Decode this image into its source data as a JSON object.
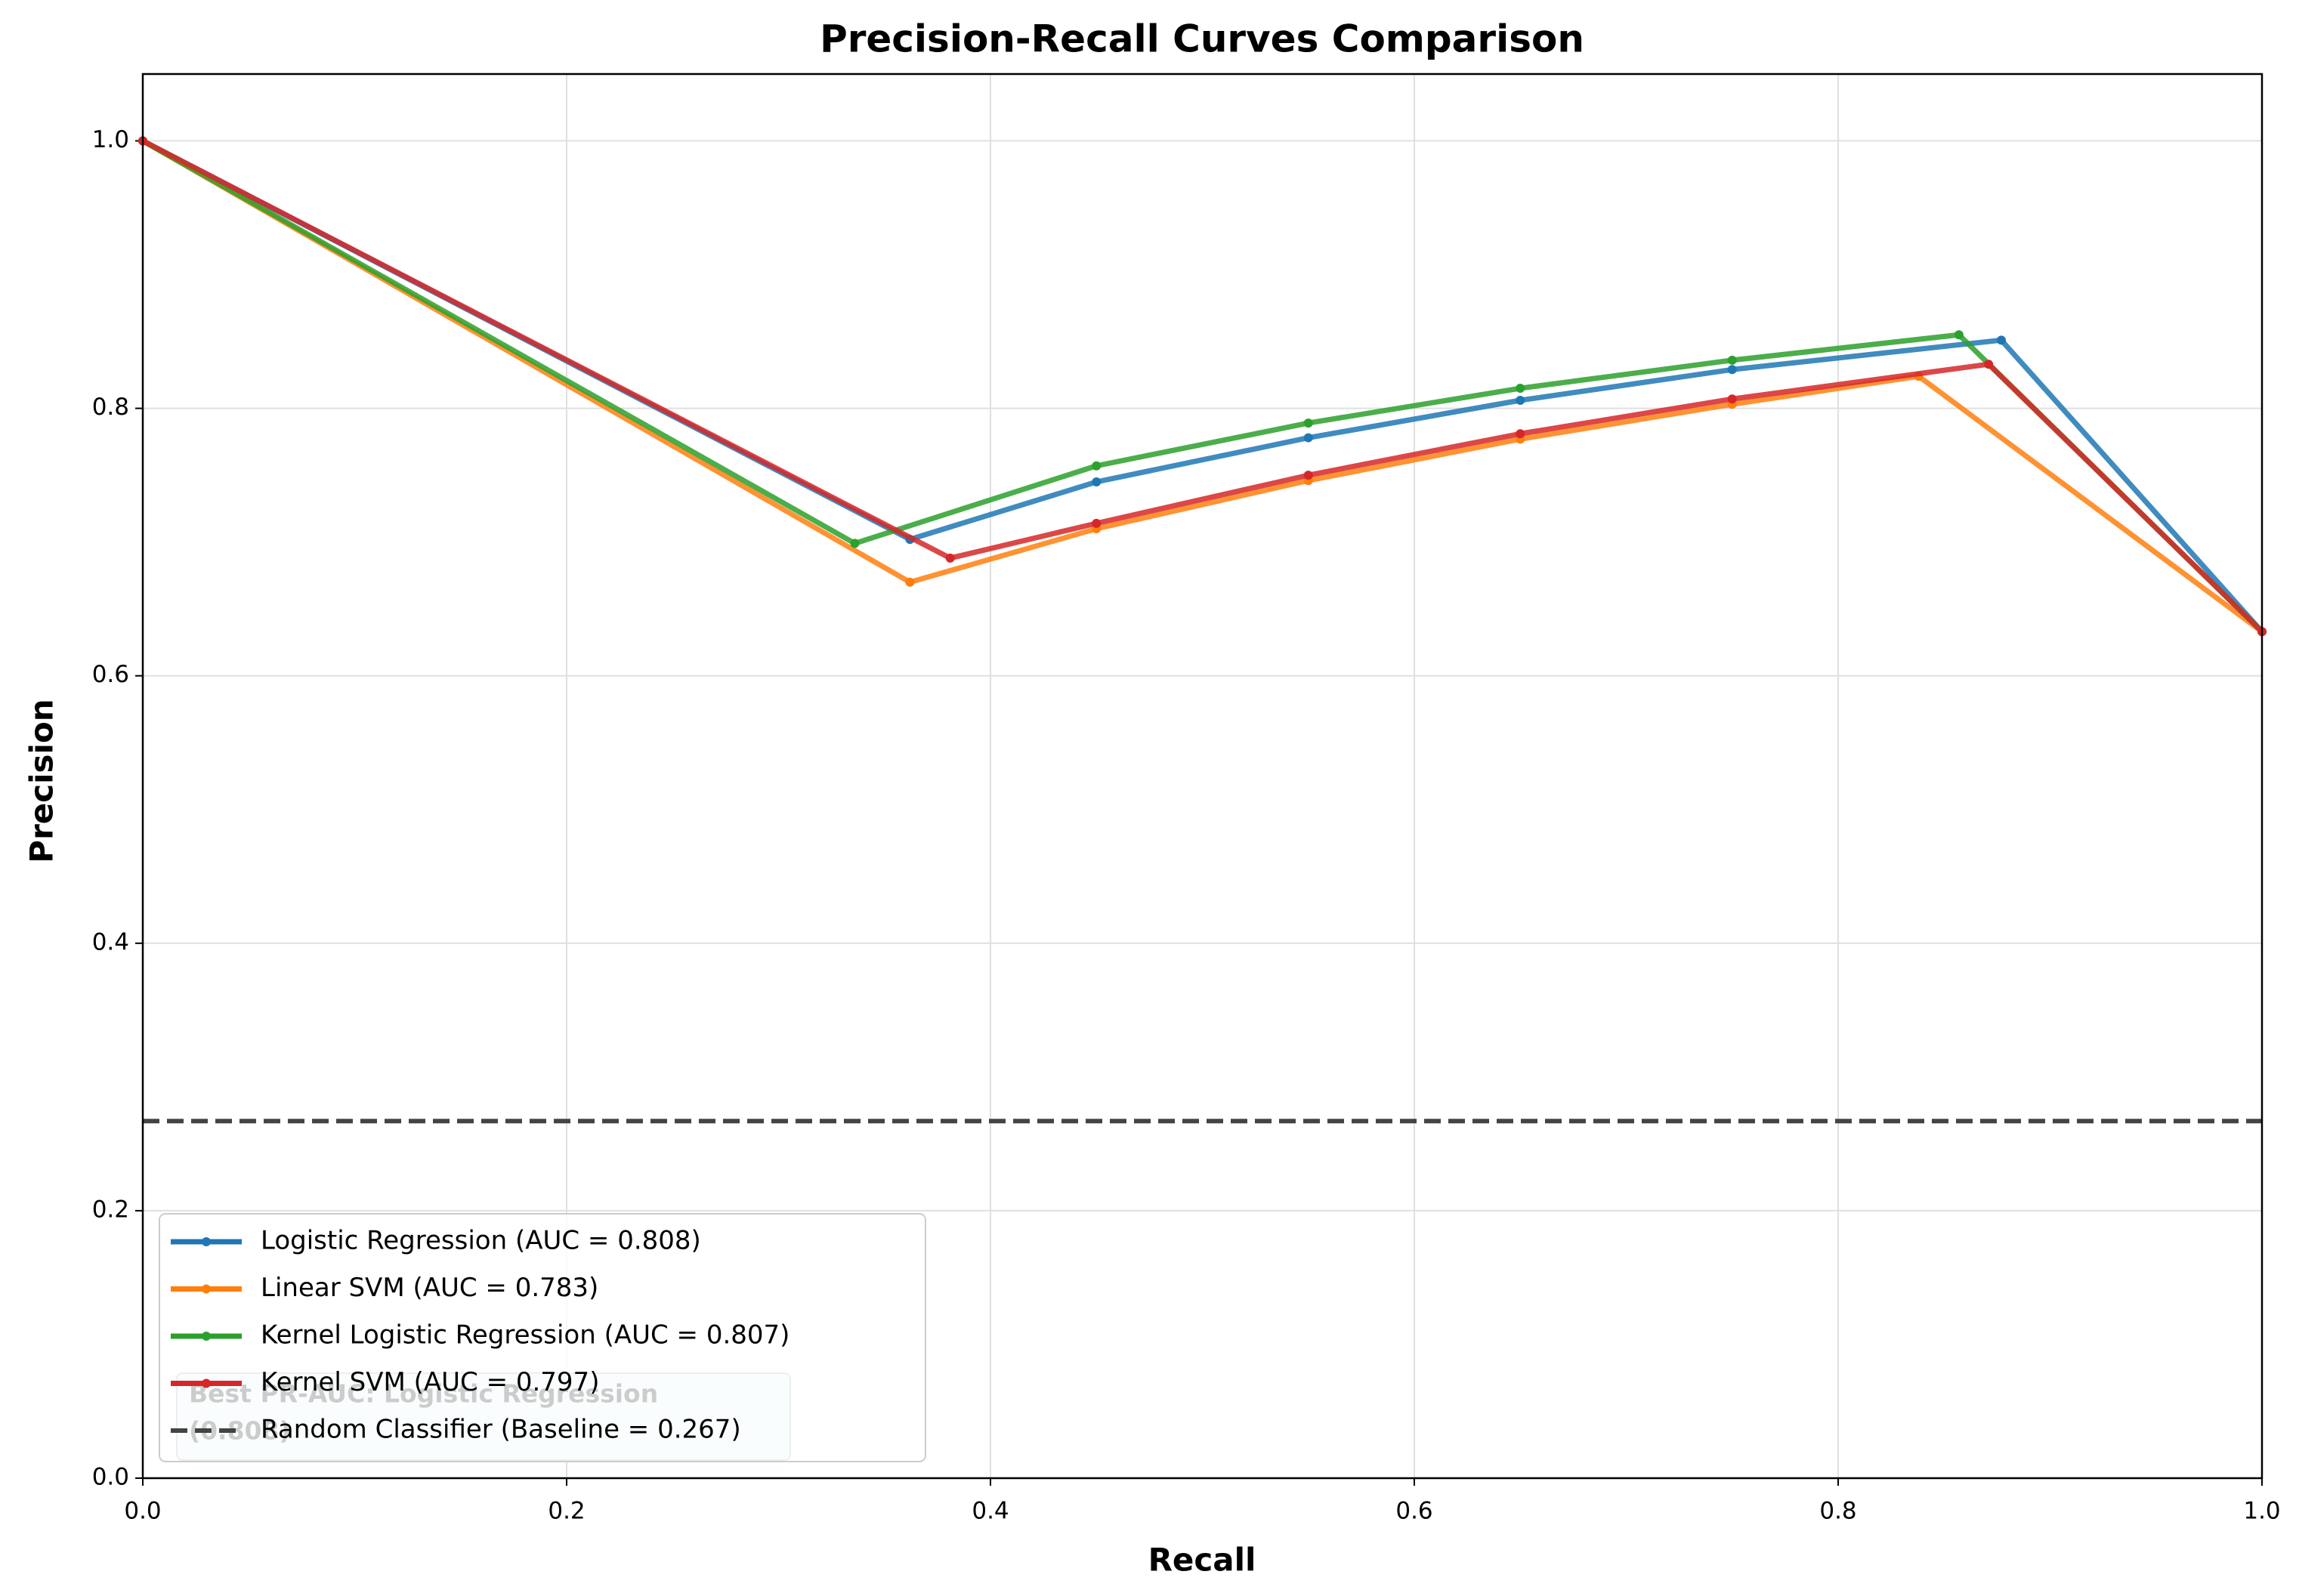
{
  "chart_data": {
    "type": "line",
    "title": "Precision-Recall Curves Comparison",
    "x_label": "Recall",
    "y_label": "Precision",
    "xlim": [
      0,
      1
    ],
    "ylim": [
      0,
      1.05
    ],
    "xticks": [
      {
        "value": 0,
        "label": "0.0"
      },
      {
        "value": 0.2,
        "label": "0.2"
      },
      {
        "value": 0.4,
        "label": "0.4"
      },
      {
        "value": 0.6,
        "label": "0.6"
      },
      {
        "value": 0.8,
        "label": "0.8"
      },
      {
        "value": 1,
        "label": "1.0"
      }
    ],
    "yticks": [
      {
        "value": 0,
        "label": "0.0"
      },
      {
        "value": 0.2,
        "label": "0.2"
      },
      {
        "value": 0.4,
        "label": "0.4"
      },
      {
        "value": 0.6,
        "label": "0.6"
      },
      {
        "value": 0.8,
        "label": "0.8"
      },
      {
        "value": 1,
        "label": "1.0"
      }
    ],
    "grid": true,
    "legend": "lower left",
    "series": [
      {
        "name": "Logistic Regression (AUC = 0.808)",
        "color": "#1f77b4",
        "x": [
          0,
          0.362,
          0.45,
          0.55,
          0.65,
          0.75,
          0.877,
          1
        ],
        "values": [
          1,
          0.702,
          0.745,
          0.778,
          0.806,
          0.829,
          0.851,
          0.633
        ]
      },
      {
        "name": "Linear SVM (AUC = 0.783)",
        "color": "#ff7f0e",
        "x": [
          0,
          0.362,
          0.45,
          0.55,
          0.65,
          0.75,
          0.838,
          1
        ],
        "values": [
          1,
          0.67,
          0.71,
          0.746,
          0.777,
          0.803,
          0.824,
          0.633
        ]
      },
      {
        "name": "Kernel Logistic Regression (AUC = 0.807)",
        "color": "#2ca02c",
        "x": [
          0,
          0.336,
          0.45,
          0.55,
          0.65,
          0.75,
          0.857,
          1
        ],
        "values": [
          1,
          0.699,
          0.757,
          0.789,
          0.815,
          0.836,
          0.855,
          0.633
        ]
      },
      {
        "name": "Kernel SVM (AUC = 0.797)",
        "color": "#d62728",
        "x": [
          0,
          0.381,
          0.45,
          0.55,
          0.65,
          0.75,
          0.871,
          1
        ],
        "values": [
          1,
          0.688,
          0.714,
          0.75,
          0.781,
          0.807,
          0.833,
          0.633
        ]
      }
    ],
    "baseline": {
      "name": "Random Classifier (Baseline = 0.267)",
      "value": 0.267,
      "color": "#444444"
    },
    "annotation": [
      "Best PR-AUC: Logistic Regression",
      "(0.808)"
    ]
  }
}
